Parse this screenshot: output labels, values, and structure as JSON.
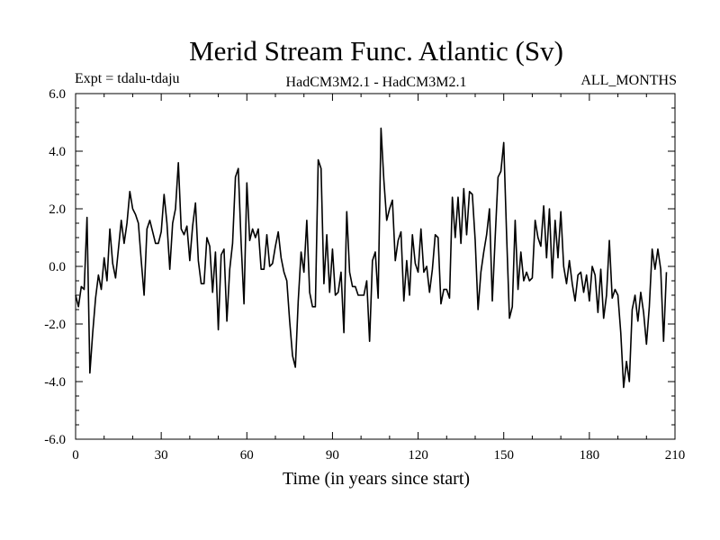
{
  "chart_data": {
    "type": "line",
    "title": "Merid Stream Func. Atlantic (Sv)",
    "subtitle_left": "Expt = tdalu-tdaju",
    "subtitle_center": "HadCM3M2.1 - HadCM3M2.1",
    "subtitle_right": "ALL_MONTHS",
    "xlabel": "Time (in years since start)",
    "ylabel": "",
    "xlim": [
      0,
      210
    ],
    "ylim": [
      -6.0,
      6.0
    ],
    "x_ticks": [
      "0",
      "30",
      "60",
      "90",
      "120",
      "150",
      "180",
      "210"
    ],
    "y_ticks": [
      "6.0",
      "4.0",
      "2.0",
      "0.0",
      "-2.0",
      "-4.0",
      "-6.0"
    ],
    "grid": false,
    "series": [
      {
        "name": "Merid Stream Func. Atlantic",
        "x_start": 0,
        "x_step": 1,
        "values": [
          -1.0,
          -1.4,
          -0.7,
          -0.8,
          1.7,
          -3.7,
          -2.3,
          -1.1,
          -0.3,
          -0.8,
          0.3,
          -0.5,
          1.3,
          0.1,
          -0.4,
          0.6,
          1.6,
          0.8,
          1.5,
          2.6,
          2.0,
          1.8,
          1.5,
          0.2,
          -1.0,
          1.3,
          1.6,
          1.2,
          0.8,
          0.8,
          1.2,
          2.5,
          1.5,
          -0.1,
          1.5,
          2.0,
          3.6,
          1.3,
          1.1,
          1.4,
          0.2,
          1.4,
          2.2,
          0.2,
          -0.6,
          -0.6,
          1.0,
          0.7,
          -0.9,
          0.5,
          -2.2,
          0.4,
          0.6,
          -1.9,
          -0.1,
          0.8,
          3.1,
          3.4,
          0.8,
          -1.3,
          2.9,
          0.9,
          1.3,
          1.0,
          1.3,
          -0.1,
          -0.1,
          1.1,
          0.0,
          0.1,
          0.7,
          1.2,
          0.3,
          -0.2,
          -0.5,
          -1.9,
          -3.1,
          -3.5,
          -1.2,
          0.5,
          -0.2,
          1.6,
          -0.9,
          -1.4,
          -1.4,
          3.7,
          3.4,
          -0.6,
          1.1,
          -0.9,
          0.6,
          -1.0,
          -0.9,
          -0.2,
          -2.3,
          1.9,
          -0.2,
          -0.7,
          -0.7,
          -1.0,
          -1.0,
          -1.0,
          -0.5,
          -2.6,
          0.2,
          0.5,
          -1.1,
          4.8,
          3.0,
          1.6,
          2.0,
          2.3,
          0.2,
          0.9,
          1.2,
          -1.2,
          0.2,
          -1.0,
          1.1,
          0.1,
          -0.2,
          1.3,
          -0.2,
          0.0,
          -0.9,
          -0.1,
          1.1,
          1.0,
          -1.3,
          -0.8,
          -0.8,
          -1.1,
          2.4,
          1.0,
          2.4,
          0.8,
          2.7,
          1.1,
          2.6,
          2.5,
          0.9,
          -1.5,
          -0.2,
          0.5,
          1.1,
          2.0,
          -1.2,
          1.0,
          3.1,
          3.3,
          4.3,
          1.1,
          -1.8,
          -1.4,
          1.6,
          -0.8,
          0.5,
          -0.5,
          -0.2,
          -0.5,
          -0.4,
          1.6,
          1.0,
          0.7,
          2.1,
          0.3,
          2.0,
          -0.4,
          1.6,
          0.3,
          1.9,
          0.0,
          -0.6,
          0.2,
          -0.6,
          -1.2,
          -0.3,
          -0.2,
          -0.9,
          -0.3,
          -1.2,
          0.0,
          -0.3,
          -1.6,
          -0.1,
          -1.8,
          -1.0,
          0.9,
          -1.1,
          -0.8,
          -1.0,
          -2.3,
          -4.2,
          -3.3,
          -4.0,
          -1.5,
          -1.0,
          -1.9,
          -0.9,
          -1.6,
          -2.7,
          -1.4,
          0.6,
          -0.1,
          0.6,
          -0.1,
          -2.6,
          -0.2
        ]
      }
    ]
  }
}
